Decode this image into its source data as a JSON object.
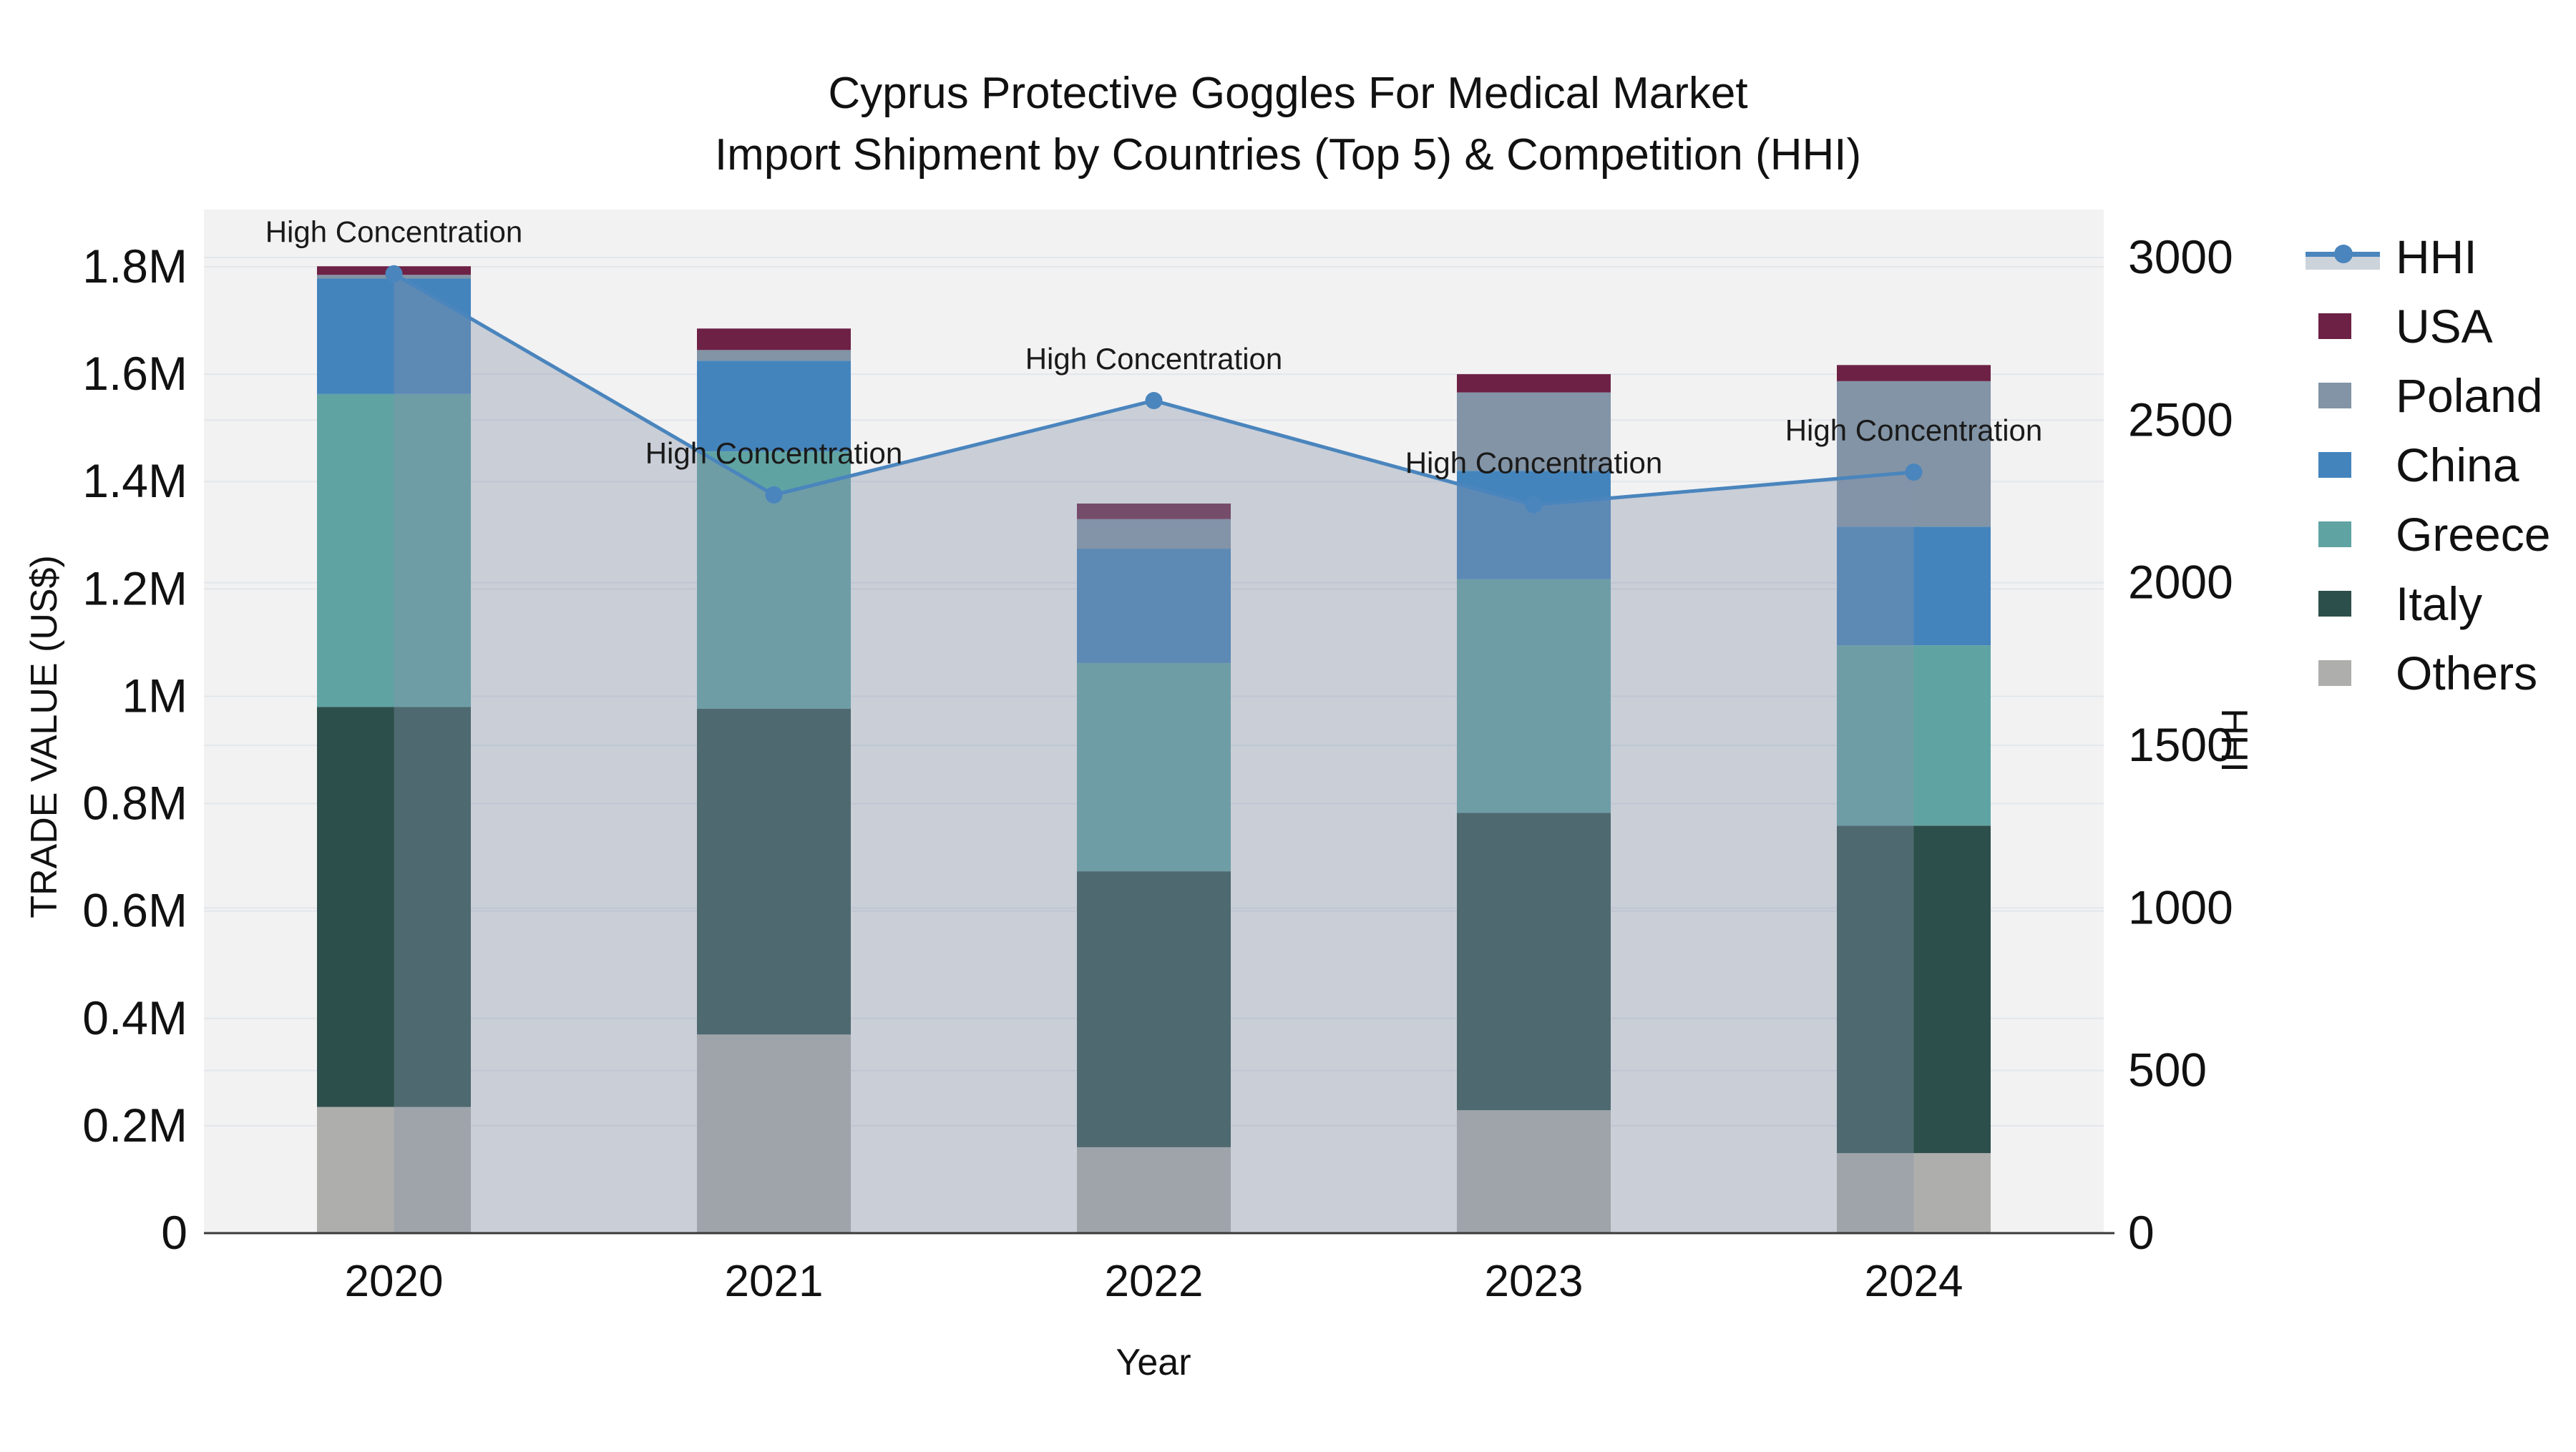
{
  "title": {
    "line1": "Cyprus Protective Goggles For Medical Market",
    "line2": "Import Shipment by Countries (Top 5) & Competition (HHI)"
  },
  "axes": {
    "y_left": {
      "title": "TRADE VALUE (US$)",
      "ticks": [
        "0",
        "0.2M",
        "0.4M",
        "0.6M",
        "0.8M",
        "1M",
        "1.2M",
        "1.4M",
        "1.6M",
        "1.8M"
      ],
      "tick_values": [
        0,
        200000,
        400000,
        600000,
        800000,
        1000000,
        1200000,
        1400000,
        1600000,
        1800000
      ]
    },
    "y_right": {
      "title": "HHI",
      "ticks": [
        "0",
        "500",
        "1000",
        "1500",
        "2000",
        "2500",
        "3000"
      ],
      "tick_values": [
        0,
        500,
        1000,
        1500,
        2000,
        2500,
        3000
      ]
    },
    "x": {
      "title": "Year",
      "ticks": [
        "2020",
        "2021",
        "2022",
        "2023",
        "2024"
      ]
    }
  },
  "legend": {
    "items": [
      {
        "label": "HHI",
        "type": "line",
        "color": "#4a85bd"
      },
      {
        "label": "USA",
        "type": "square",
        "color": "#6d2145"
      },
      {
        "label": "Poland",
        "type": "square",
        "color": "#8294a6"
      },
      {
        "label": "China",
        "type": "square",
        "color": "#4484bc"
      },
      {
        "label": "Greece",
        "type": "square",
        "color": "#60a3a3"
      },
      {
        "label": "Italy",
        "type": "square",
        "color": "#2d4f4b"
      },
      {
        "label": "Others",
        "type": "square",
        "color": "#aeaeac"
      }
    ]
  },
  "chart_data": {
    "type": "combo: stacked-bar + line (dual y-axis)",
    "title": "Cyprus Protective Goggles For Medical Market — Import Shipment by Countries (Top 5) & Competition (HHI)",
    "categories": [
      2020,
      2021,
      2022,
      2023,
      2024
    ],
    "xlabel": "Year",
    "ylabel_left": "TRADE VALUE (US$)",
    "ylabel_right": "HHI",
    "ylim_left": [
      0,
      1870000
    ],
    "ylim_right": [
      0,
      3080
    ],
    "grid": true,
    "legend_position": "right",
    "stack_order_bottom_to_top": [
      "Others",
      "Italy",
      "Greece",
      "China",
      "Poland",
      "USA"
    ],
    "series": [
      {
        "name": "USA",
        "color": "#6d2145",
        "values": [
          16000,
          40000,
          29000,
          34000,
          30000
        ]
      },
      {
        "name": "Poland",
        "color": "#8294a6",
        "values": [
          7000,
          20000,
          55000,
          146000,
          271000
        ]
      },
      {
        "name": "China",
        "color": "#4484bc",
        "values": [
          215000,
          169000,
          213000,
          202000,
          221000
        ]
      },
      {
        "name": "Greece",
        "color": "#60a3a3",
        "values": [
          583000,
          479000,
          388000,
          435000,
          336000
        ]
      },
      {
        "name": "Italy",
        "color": "#2d4f4b",
        "values": [
          745000,
          607000,
          514000,
          554000,
          610000
        ]
      },
      {
        "name": "Others",
        "color": "#aeaeac",
        "values": [
          235000,
          370000,
          160000,
          229000,
          149000
        ]
      }
    ],
    "bar_totals": [
      1801000,
      1685000,
      1359000,
      1600000,
      1617000
    ],
    "hhi_line": {
      "name": "HHI",
      "color": "#4a85bd",
      "fill_color": "rgba(134,148,170,0.38)",
      "values": [
        2950,
        2270,
        2560,
        2240,
        2340
      ],
      "point_annotation": "High Concentration"
    }
  },
  "style": {
    "plot_bg": "#f2f2f3",
    "grid_color": "#e3e6ea",
    "axis_line_color": "#3a3a3a",
    "text_color": "#111111",
    "annotation_color": "#1a1a1a"
  }
}
